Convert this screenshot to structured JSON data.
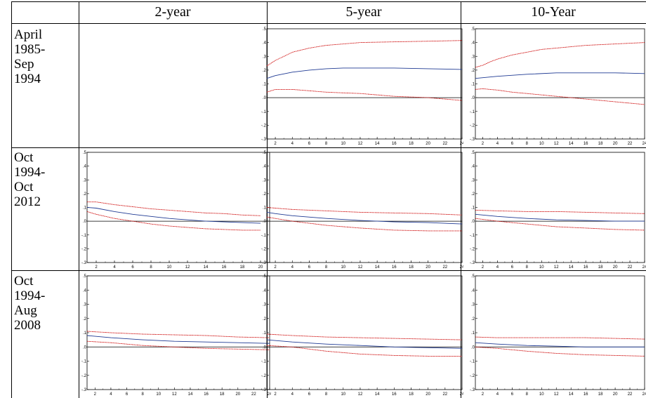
{
  "columns": [
    "2-year",
    "5-year",
    "10-Year"
  ],
  "rows": [
    {
      "period_lines": [
        "April",
        "1985-",
        "Sep",
        "1994"
      ]
    },
    {
      "period_lines": [
        "Oct",
        "1994-",
        "Oct",
        "2012"
      ]
    },
    {
      "period_lines": [
        "Oct",
        "1994-",
        "Aug",
        "2008"
      ]
    }
  ],
  "axis": {
    "y_ticks": [
      ".5",
      ".4",
      ".3",
      ".2",
      ".1",
      ".0",
      "-.1",
      "-.2",
      "-.3"
    ]
  },
  "colors": {
    "response": "#1f3a93",
    "band": "#cc0000",
    "zero": "#000000"
  },
  "chart_data": [
    {
      "type": "line",
      "row": 0,
      "col": 1,
      "x": [
        1,
        24
      ],
      "xlim": [
        1,
        24
      ],
      "ylim": [
        -0.3,
        0.5
      ],
      "x_ticks": [
        "2",
        "4",
        "6",
        "8",
        "10",
        "12",
        "14",
        "16",
        "18",
        "20",
        "22",
        "24"
      ],
      "series": [
        {
          "role": "upper",
          "x": [
            1,
            2,
            3,
            4,
            6,
            8,
            10,
            12,
            16,
            20,
            24
          ],
          "y": [
            0.23,
            0.27,
            0.3,
            0.33,
            0.36,
            0.38,
            0.39,
            0.4,
            0.405,
            0.41,
            0.415
          ]
        },
        {
          "role": "response",
          "x": [
            1,
            2,
            4,
            6,
            8,
            10,
            12,
            16,
            20,
            24
          ],
          "y": [
            0.14,
            0.16,
            0.185,
            0.2,
            0.21,
            0.215,
            0.215,
            0.215,
            0.21,
            0.205
          ]
        },
        {
          "role": "lower",
          "x": [
            1,
            2,
            3,
            4,
            6,
            8,
            10,
            12,
            16,
            20,
            24
          ],
          "y": [
            0.04,
            0.06,
            0.06,
            0.06,
            0.05,
            0.04,
            0.035,
            0.03,
            0.01,
            0.0,
            -0.02
          ]
        }
      ]
    },
    {
      "type": "line",
      "row": 0,
      "col": 2,
      "x": [
        1,
        24
      ],
      "xlim": [
        1,
        24
      ],
      "ylim": [
        -0.3,
        0.5
      ],
      "x_ticks": [
        "2",
        "4",
        "6",
        "8",
        "10",
        "12",
        "14",
        "16",
        "18",
        "20",
        "22",
        "24"
      ],
      "series": [
        {
          "role": "upper",
          "x": [
            1,
            2,
            3,
            4,
            6,
            8,
            10,
            12,
            16,
            20,
            24
          ],
          "y": [
            0.22,
            0.235,
            0.26,
            0.28,
            0.31,
            0.33,
            0.35,
            0.36,
            0.38,
            0.39,
            0.4
          ]
        },
        {
          "role": "response",
          "x": [
            1,
            4,
            8,
            12,
            16,
            20,
            24
          ],
          "y": [
            0.14,
            0.155,
            0.17,
            0.18,
            0.18,
            0.18,
            0.175
          ]
        },
        {
          "role": "lower",
          "x": [
            1,
            2,
            3,
            4,
            6,
            8,
            10,
            12,
            14,
            16,
            20,
            24
          ],
          "y": [
            0.06,
            0.065,
            0.06,
            0.055,
            0.04,
            0.03,
            0.02,
            0.01,
            0.0,
            -0.01,
            -0.03,
            -0.05
          ]
        }
      ]
    },
    {
      "type": "line",
      "row": 1,
      "col": 0,
      "x": [
        1,
        20
      ],
      "xlim": [
        1,
        21
      ],
      "ylim": [
        -0.3,
        0.5
      ],
      "x_ticks": [
        "2",
        "4",
        "6",
        "8",
        "10",
        "12",
        "14",
        "16",
        "18",
        "20"
      ],
      "series": [
        {
          "role": "upper",
          "x": [
            1,
            2,
            4,
            6,
            8,
            10,
            12,
            14,
            16,
            18,
            20
          ],
          "y": [
            0.14,
            0.14,
            0.12,
            0.105,
            0.09,
            0.08,
            0.07,
            0.06,
            0.055,
            0.045,
            0.04
          ]
        },
        {
          "role": "response",
          "x": [
            1,
            2,
            4,
            6,
            8,
            10,
            12,
            14,
            16,
            18,
            20
          ],
          "y": [
            0.1,
            0.095,
            0.07,
            0.05,
            0.035,
            0.02,
            0.01,
            0.0,
            -0.005,
            -0.01,
            -0.015
          ]
        },
        {
          "role": "lower",
          "x": [
            1,
            2,
            4,
            6,
            8,
            10,
            12,
            14,
            16,
            18,
            20
          ],
          "y": [
            0.07,
            0.05,
            0.02,
            0.0,
            -0.02,
            -0.035,
            -0.045,
            -0.055,
            -0.06,
            -0.065,
            -0.065
          ]
        }
      ]
    },
    {
      "type": "line",
      "row": 1,
      "col": 1,
      "x": [
        1,
        24
      ],
      "xlim": [
        1,
        24
      ],
      "ylim": [
        -0.3,
        0.5
      ],
      "x_ticks": [
        "2",
        "4",
        "6",
        "8",
        "10",
        "12",
        "14",
        "16",
        "18",
        "20",
        "22",
        "24"
      ],
      "series": [
        {
          "role": "upper",
          "x": [
            1,
            2,
            4,
            8,
            12,
            16,
            20,
            24
          ],
          "y": [
            0.1,
            0.095,
            0.085,
            0.075,
            0.065,
            0.06,
            0.055,
            0.045
          ]
        },
        {
          "role": "response",
          "x": [
            1,
            2,
            4,
            8,
            12,
            16,
            20,
            24
          ],
          "y": [
            0.065,
            0.055,
            0.04,
            0.02,
            0.005,
            -0.005,
            -0.01,
            -0.02
          ]
        },
        {
          "role": "lower",
          "x": [
            1,
            2,
            4,
            8,
            12,
            16,
            20,
            24
          ],
          "y": [
            0.03,
            0.02,
            0.0,
            -0.03,
            -0.05,
            -0.065,
            -0.07,
            -0.07
          ]
        }
      ]
    },
    {
      "type": "line",
      "row": 1,
      "col": 2,
      "x": [
        1,
        24
      ],
      "xlim": [
        1,
        24
      ],
      "ylim": [
        -0.3,
        0.5
      ],
      "x_ticks": [
        "2",
        "4",
        "6",
        "8",
        "10",
        "12",
        "14",
        "16",
        "18",
        "20",
        "22",
        "24"
      ],
      "series": [
        {
          "role": "upper",
          "x": [
            1,
            4,
            8,
            12,
            16,
            20,
            24
          ],
          "y": [
            0.08,
            0.075,
            0.07,
            0.07,
            0.065,
            0.06,
            0.055
          ]
        },
        {
          "role": "response",
          "x": [
            1,
            4,
            8,
            12,
            16,
            20,
            24
          ],
          "y": [
            0.05,
            0.035,
            0.02,
            0.01,
            0.005,
            0.0,
            0.0
          ]
        },
        {
          "role": "lower",
          "x": [
            1,
            4,
            8,
            12,
            16,
            20,
            24
          ],
          "y": [
            0.02,
            0.0,
            -0.02,
            -0.04,
            -0.05,
            -0.06,
            -0.065
          ]
        }
      ]
    },
    {
      "type": "line",
      "row": 2,
      "col": 0,
      "x": [
        1,
        24
      ],
      "xlim": [
        1,
        24
      ],
      "ylim": [
        -0.3,
        0.5
      ],
      "x_ticks": [
        "2",
        "4",
        "6",
        "8",
        "10",
        "12",
        "14",
        "16",
        "18",
        "20",
        "22",
        "24"
      ],
      "series": [
        {
          "role": "upper",
          "x": [
            1,
            4,
            8,
            12,
            16,
            20,
            24
          ],
          "y": [
            0.11,
            0.1,
            0.09,
            0.085,
            0.08,
            0.07,
            0.065
          ]
        },
        {
          "role": "response",
          "x": [
            1,
            4,
            8,
            12,
            16,
            20,
            24
          ],
          "y": [
            0.08,
            0.065,
            0.05,
            0.04,
            0.035,
            0.03,
            0.025
          ]
        },
        {
          "role": "lower",
          "x": [
            1,
            4,
            8,
            12,
            16,
            20,
            24
          ],
          "y": [
            0.04,
            0.03,
            0.01,
            0.0,
            -0.01,
            -0.015,
            -0.02
          ]
        }
      ]
    },
    {
      "type": "line",
      "row": 2,
      "col": 1,
      "x": [
        1,
        24
      ],
      "xlim": [
        1,
        24
      ],
      "ylim": [
        -0.3,
        0.5
      ],
      "x_ticks": [
        "2",
        "4",
        "6",
        "8",
        "10",
        "12",
        "14",
        "16",
        "18",
        "20",
        "22",
        "24"
      ],
      "series": [
        {
          "role": "upper",
          "x": [
            1,
            4,
            8,
            12,
            16,
            20,
            24
          ],
          "y": [
            0.09,
            0.08,
            0.07,
            0.065,
            0.06,
            0.055,
            0.05
          ]
        },
        {
          "role": "response",
          "x": [
            1,
            4,
            8,
            12,
            16,
            20,
            24
          ],
          "y": [
            0.05,
            0.035,
            0.02,
            0.01,
            0.0,
            -0.005,
            -0.01
          ]
        },
        {
          "role": "lower",
          "x": [
            1,
            4,
            8,
            12,
            16,
            20,
            24
          ],
          "y": [
            0.01,
            0.0,
            -0.03,
            -0.05,
            -0.06,
            -0.065,
            -0.065
          ]
        }
      ]
    },
    {
      "type": "line",
      "row": 2,
      "col": 2,
      "x": [
        1,
        24
      ],
      "xlim": [
        1,
        24
      ],
      "ylim": [
        -0.3,
        0.5
      ],
      "x_ticks": [
        "2",
        "4",
        "6",
        "8",
        "10",
        "12",
        "14",
        "16",
        "18",
        "20",
        "22",
        "24"
      ],
      "series": [
        {
          "role": "upper",
          "x": [
            1,
            4,
            8,
            12,
            16,
            20,
            24
          ],
          "y": [
            0.07,
            0.065,
            0.065,
            0.065,
            0.065,
            0.06,
            0.055
          ]
        },
        {
          "role": "response",
          "x": [
            1,
            4,
            8,
            12,
            16,
            20,
            24
          ],
          "y": [
            0.03,
            0.02,
            0.01,
            0.005,
            0.0,
            0.0,
            0.0
          ]
        },
        {
          "role": "lower",
          "x": [
            1,
            4,
            8,
            12,
            16,
            20,
            24
          ],
          "y": [
            0.0,
            -0.01,
            -0.03,
            -0.045,
            -0.055,
            -0.06,
            -0.065
          ]
        }
      ]
    }
  ]
}
